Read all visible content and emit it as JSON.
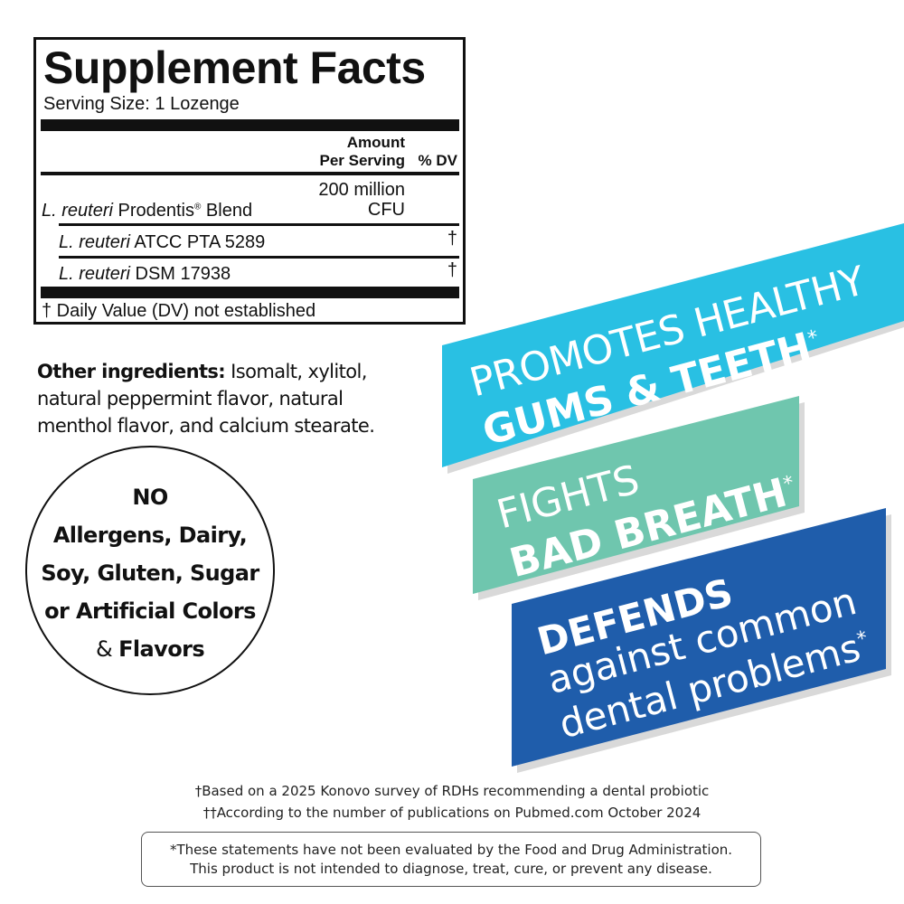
{
  "supplement_facts": {
    "title": "Supplement Facts",
    "serving_size": "Serving Size: 1 Lozenge",
    "col_amount_1": "Amount",
    "col_amount_2": "Per Serving",
    "col_dv": "% DV",
    "rows": [
      {
        "italic": "L. reuteri",
        "name": " Prodentis",
        "reg": "®",
        "suffix": " Blend",
        "amount_1": "200 million",
        "amount_2": "CFU",
        "dv": ""
      },
      {
        "italic": "L. reuteri",
        "name": " ATCC PTA 5289",
        "dv": "†"
      },
      {
        "italic": "L. reuteri",
        "name": " DSM 17938",
        "dv": "†"
      }
    ],
    "footnote": "† Daily Value (DV) not established"
  },
  "other_ingredients": {
    "label": "Other ingredients:",
    "text": " Isomalt, xylitol, natural peppermint flavor, natural menthol flavor, and calcium stearate."
  },
  "free_from": {
    "lines": [
      "NO",
      "Allergens, Dairy,",
      "Soy, Gluten, Sugar",
      "or Artificial Colors"
    ],
    "last_amp": "& ",
    "last_bold": "Flavors"
  },
  "banners": [
    {
      "color": "#29c0e3",
      "light": "PROMOTES HEALTHY",
      "bold": "GUMS & TEETH",
      "mark": "*"
    },
    {
      "color": "#6fc6ae",
      "light": "FIGHTS",
      "bold": "BAD BREATH",
      "mark": "*"
    },
    {
      "color": "#1f5dab",
      "bold": "DEFENDS",
      "light_1": "against common",
      "light_2": "dental problems",
      "mark": "*"
    }
  ],
  "footnotes": [
    "†Based on a 2025 Konovo survey of RDHs recommending a dental probiotic",
    "††According to the number of publications on Pubmed.com October 2024"
  ],
  "disclaimer": [
    "*These statements have not been evaluated by the Food and Drug Administration.",
    "This product is not intended to diagnose, treat, cure, or prevent any disease."
  ]
}
